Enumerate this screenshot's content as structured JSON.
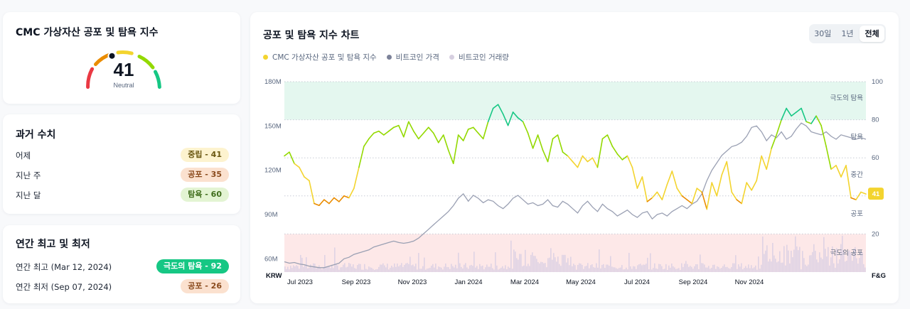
{
  "gauge": {
    "title": "CMC 가상자산 공포 및 탐욕 지수",
    "value": 41,
    "label": "Neutral",
    "colors": {
      "extreme_fear": "#ea3943",
      "fear": "#ea8c00",
      "neutral": "#f3d42f",
      "greed": "#93d900",
      "extreme_greed": "#16c784"
    }
  },
  "history": {
    "title": "과거 수치",
    "rows": [
      {
        "label": "어제",
        "badge": "중립 - 41",
        "kind": "neutral"
      },
      {
        "label": "지난 주",
        "badge": "공포 - 35",
        "kind": "fear"
      },
      {
        "label": "지난 달",
        "badge": "탐욕 - 60",
        "kind": "greed"
      }
    ]
  },
  "yearly": {
    "title": "연간 최고 및 최저",
    "rows": [
      {
        "label": "연간 최고 (Mar 12, 2024)",
        "badge": "극도의 탐욕 - 92",
        "kind": "extreme-greed"
      },
      {
        "label": "연간 최저 (Sep 07, 2024)",
        "badge": "공포 - 26",
        "kind": "fear"
      }
    ]
  },
  "chart_card": {
    "title": "공포 및 탐욕 지수 차트",
    "range_tabs": [
      {
        "label": "30일",
        "active": false
      },
      {
        "label": "1년",
        "active": false
      },
      {
        "label": "전체",
        "active": true
      }
    ],
    "legend": [
      {
        "label": "CMC 가상자산 공포 및 탐욕 지수",
        "color": "#f3d42f"
      },
      {
        "label": "비트코인 가격",
        "color": "#7c8299"
      },
      {
        "label": "비트코인 거래량",
        "color": "#d6cfe0"
      }
    ]
  },
  "chart_data": {
    "type": "line",
    "left_axis": {
      "label": "KRW",
      "ticks": [
        "180M",
        "150M",
        "120M",
        "90M",
        "60M"
      ],
      "range": [
        51000000,
        180000000
      ]
    },
    "right_axis": {
      "label": "F&G",
      "ticks": [
        "100",
        "80",
        "60",
        "40",
        "20"
      ],
      "range": [
        0,
        100
      ]
    },
    "x_ticks": [
      "Jul 2023",
      "Sep 2023",
      "Nov 2023",
      "Jan 2024",
      "Mar 2024",
      "May 2024",
      "Jul 2024",
      "Sep 2024",
      "Nov 2024"
    ],
    "zones": [
      {
        "label": "극도의 탐욕",
        "from": 80,
        "to": 100
      },
      {
        "label": "탐욕",
        "from": 60,
        "to": 80
      },
      {
        "label": "중간",
        "from": 40,
        "to": 60
      },
      {
        "label": "공포",
        "from": 20,
        "to": 40
      },
      {
        "label": "극도의 공포",
        "from": 0,
        "to": 20
      }
    ],
    "current_value": "41",
    "fear_greed": [
      61,
      63,
      57,
      55,
      50,
      48,
      36,
      35,
      38,
      36,
      39,
      37,
      40,
      39,
      44,
      55,
      66,
      70,
      73,
      74,
      72,
      74,
      76,
      77,
      71,
      79,
      74,
      70,
      73,
      76,
      73,
      68,
      72,
      64,
      57,
      72,
      69,
      75,
      76,
      73,
      70,
      79,
      86,
      88,
      83,
      77,
      84,
      81,
      79,
      73,
      65,
      72,
      64,
      58,
      70,
      72,
      63,
      61,
      58,
      55,
      61,
      58,
      60,
      55,
      70,
      72,
      66,
      62,
      59,
      61,
      55,
      44,
      50,
      37,
      39,
      42,
      38,
      46,
      53,
      44,
      40,
      38,
      36,
      44,
      42,
      33,
      47,
      40,
      51,
      58,
      42,
      38,
      36,
      47,
      43,
      48,
      61,
      54,
      65,
      72,
      80,
      86,
      82,
      84,
      86,
      79,
      78,
      82,
      77,
      66,
      54,
      56,
      50,
      56,
      39,
      38,
      42,
      41
    ],
    "btc_price_krw": [
      58000000,
      57000000,
      57500000,
      56500000,
      56000000,
      55000000,
      54500000,
      54000000,
      54000000,
      55000000,
      56000000,
      57000000,
      60000000,
      61000000,
      63000000,
      64000000,
      65000000,
      66000000,
      68000000,
      69000000,
      70000000,
      71000000,
      72000000,
      71000000,
      70500000,
      71000000,
      72000000,
      74000000,
      77000000,
      80000000,
      83000000,
      86000000,
      89000000,
      92000000,
      96000000,
      101000000,
      104000000,
      99000000,
      103000000,
      101000000,
      98000000,
      100000000,
      99000000,
      96000000,
      94000000,
      97000000,
      101000000,
      103000000,
      100000000,
      97000000,
      98000000,
      96000000,
      97000000,
      100000000,
      96000000,
      95000000,
      99000000,
      97000000,
      94000000,
      91000000,
      96000000,
      99000000,
      95000000,
      92000000,
      97000000,
      94000000,
      92000000,
      89000000,
      91000000,
      93000000,
      90000000,
      88000000,
      91000000,
      92000000,
      87000000,
      90000000,
      91000000,
      89000000,
      92000000,
      94000000,
      96000000,
      94000000,
      97000000,
      99000000,
      104000000,
      113000000,
      120000000,
      125000000,
      130000000,
      133000000,
      136000000,
      137000000,
      139000000,
      143000000,
      149000000,
      150000000,
      146000000,
      140000000,
      144000000,
      142000000,
      146000000,
      141000000,
      143000000,
      148000000,
      152000000,
      150000000,
      146000000,
      145000000,
      144000000,
      146000000,
      143000000,
      141000000,
      144000000,
      143000000,
      142000000,
      141000000,
      142000000,
      141000000
    ]
  }
}
